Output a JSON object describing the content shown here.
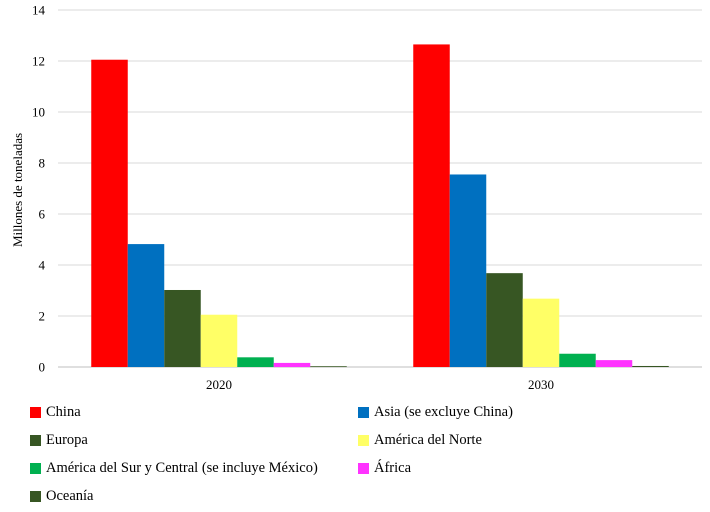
{
  "chart_data": {
    "type": "bar",
    "categories": [
      "2020",
      "2030"
    ],
    "ylabel": "Millones de toneladas",
    "xlabel": "",
    "ylim": [
      0,
      14
    ],
    "yticks": [
      0,
      2,
      4,
      6,
      8,
      10,
      12,
      14
    ],
    "grid": true,
    "legend_position": "bottom",
    "series": [
      {
        "name": "China",
        "color": "#ff0000",
        "values": [
          12.05,
          12.65
        ]
      },
      {
        "name": "Asia (se excluye China)",
        "color": "#0070c0",
        "values": [
          4.82,
          7.55
        ]
      },
      {
        "name": "Europa",
        "color": "#375623",
        "values": [
          3.02,
          3.68
        ]
      },
      {
        "name": "América del Norte",
        "color": "#ffff66",
        "values": [
          2.05,
          2.68
        ]
      },
      {
        "name": "América del Sur y Central (se incluye México)",
        "color": "#00b050",
        "values": [
          0.38,
          0.52
        ]
      },
      {
        "name": "África",
        "color": "#ff33ff",
        "values": [
          0.16,
          0.27
        ]
      },
      {
        "name": "Oceanía",
        "color": "#375623",
        "values": [
          0.03,
          0.04
        ]
      }
    ]
  }
}
